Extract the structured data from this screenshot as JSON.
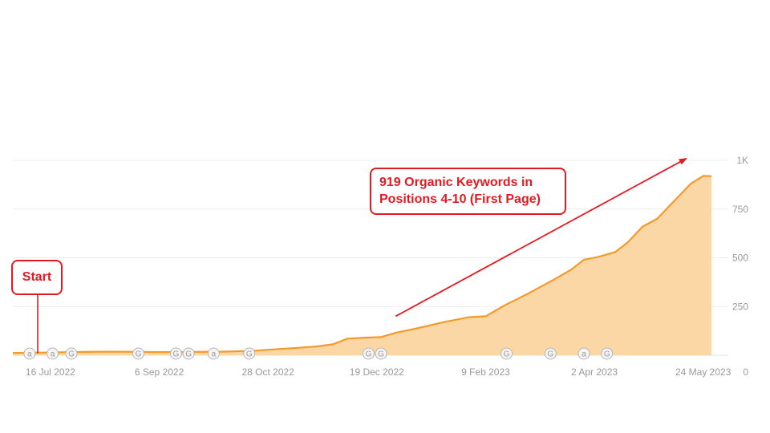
{
  "chart_data": {
    "type": "area",
    "title": "",
    "xlabel": "",
    "ylabel": "",
    "ylim": [
      0,
      1000
    ],
    "yticks": [
      {
        "value": 0,
        "label": "0"
      },
      {
        "value": 250,
        "label": "250"
      },
      {
        "value": 500,
        "label": "500"
      },
      {
        "value": 750,
        "label": "750"
      },
      {
        "value": 1000,
        "label": "1K"
      }
    ],
    "xlim": [
      "2022-06-28",
      "2023-06-05"
    ],
    "xticks": [
      {
        "date": "2022-07-16",
        "label": "16 Jul 2022"
      },
      {
        "date": "2022-09-06",
        "label": "6 Sep 2022"
      },
      {
        "date": "2022-10-28",
        "label": "28 Oct 2022"
      },
      {
        "date": "2022-12-19",
        "label": "19 Dec 2022"
      },
      {
        "date": "2023-02-09",
        "label": "9 Feb 2023"
      },
      {
        "date": "2023-04-02",
        "label": "2 Apr 2023"
      },
      {
        "date": "2023-05-24",
        "label": "24 May 2023"
      }
    ],
    "grid": true,
    "colors": {
      "line": "#f39a2b",
      "fill": "#fcd7a6",
      "grid": "#ececec",
      "annotation": "#e11b22"
    },
    "series": [
      {
        "points": [
          [
            "2022-06-28",
            12
          ],
          [
            "2022-07-10",
            13
          ],
          [
            "2022-07-25",
            16
          ],
          [
            "2022-08-08",
            18
          ],
          [
            "2022-08-20",
            18
          ],
          [
            "2022-09-05",
            16
          ],
          [
            "2022-09-20",
            17
          ],
          [
            "2022-10-05",
            18
          ],
          [
            "2022-10-20",
            22
          ],
          [
            "2022-10-28",
            28
          ],
          [
            "2022-11-10",
            37
          ],
          [
            "2022-11-20",
            45
          ],
          [
            "2022-11-28",
            56
          ],
          [
            "2022-12-05",
            85
          ],
          [
            "2022-12-13",
            90
          ],
          [
            "2022-12-21",
            93
          ],
          [
            "2022-12-28",
            115
          ],
          [
            "2023-01-08",
            140
          ],
          [
            "2023-01-20",
            170
          ],
          [
            "2023-02-01",
            195
          ],
          [
            "2023-02-09",
            200
          ],
          [
            "2023-02-18",
            255
          ],
          [
            "2023-03-02",
            320
          ],
          [
            "2023-03-14",
            390
          ],
          [
            "2023-03-22",
            440
          ],
          [
            "2023-03-28",
            490
          ],
          [
            "2023-04-04",
            505
          ],
          [
            "2023-04-12",
            530
          ],
          [
            "2023-04-18",
            580
          ],
          [
            "2023-04-25",
            660
          ],
          [
            "2023-05-02",
            700
          ],
          [
            "2023-05-10",
            790
          ],
          [
            "2023-05-18",
            880
          ],
          [
            "2023-05-24",
            920
          ],
          [
            "2023-05-28",
            919
          ]
        ]
      }
    ],
    "event_markers": [
      {
        "date": "2022-07-06",
        "label": "a"
      },
      {
        "date": "2022-07-17",
        "label": "a"
      },
      {
        "date": "2022-07-26",
        "label": "G"
      },
      {
        "date": "2022-08-27",
        "label": "G"
      },
      {
        "date": "2022-09-14",
        "label": "G"
      },
      {
        "date": "2022-09-20",
        "label": "G"
      },
      {
        "date": "2022-10-02",
        "label": "a"
      },
      {
        "date": "2022-10-19",
        "label": "G"
      },
      {
        "date": "2022-12-15",
        "label": "G"
      },
      {
        "date": "2022-12-21",
        "label": "G"
      },
      {
        "date": "2023-02-19",
        "label": "G"
      },
      {
        "date": "2023-03-12",
        "label": "G"
      },
      {
        "date": "2023-03-28",
        "label": "a"
      },
      {
        "date": "2023-04-08",
        "label": "G"
      }
    ],
    "annotations": [
      {
        "text": "Start",
        "date": "2022-07-07",
        "value": 10
      },
      {
        "text": "919 Organic Keywords in Positions 4-10 (First Page)",
        "arrow_from": [
          "2022-12-28",
          200
        ],
        "arrow_to": [
          "2023-05-16",
          1010
        ]
      }
    ]
  }
}
